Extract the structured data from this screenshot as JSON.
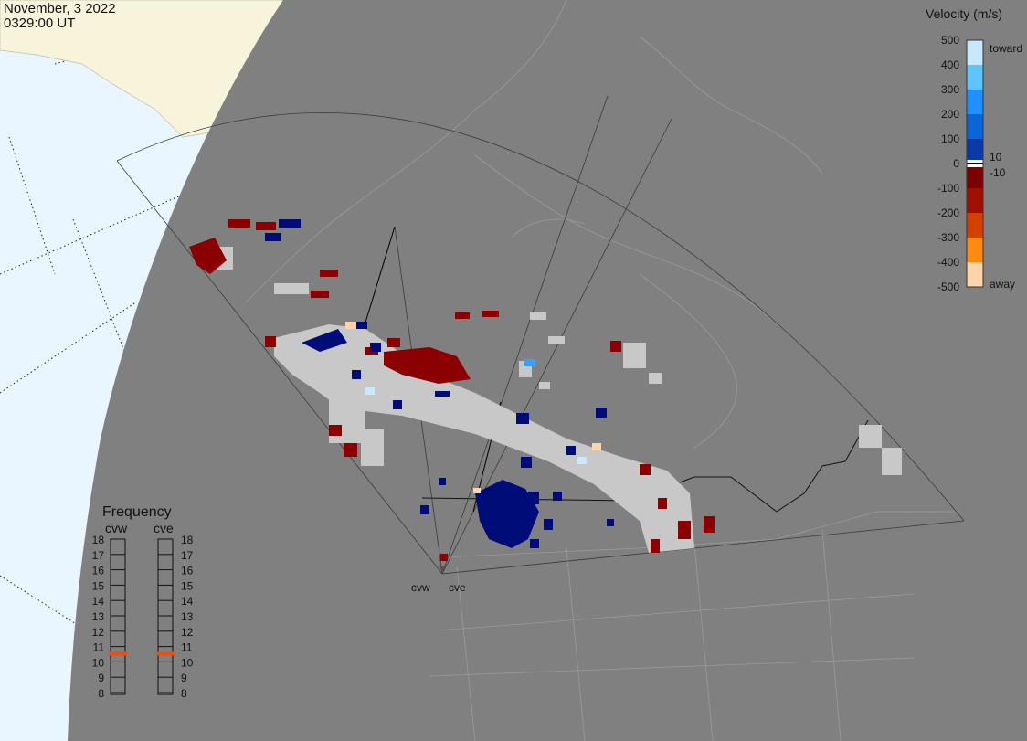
{
  "header": {
    "date": "November, 3 2022",
    "time": "0329:00 UT"
  },
  "velocity_legend": {
    "title": "Velocity (m/s)",
    "ticks": [
      "500",
      "400",
      "300",
      "200",
      "100",
      "0",
      "-100",
      "-200",
      "-300",
      "-400",
      "-500"
    ],
    "toward_label": "toward",
    "away_label": "away",
    "plus_ten": "10",
    "minus_ten": "-10",
    "colors": [
      "#c8e8ff",
      "#5ec4ff",
      "#1e90ff",
      "#0a66d6",
      "#0a3aa8",
      "#000d78",
      "#7c0000",
      "#a01000",
      "#d44000",
      "#ff8a10",
      "#ffd4a8"
    ]
  },
  "frequency_legend": {
    "title": "Frequency",
    "radars": [
      "cvw",
      "cve"
    ],
    "levels": [
      "18",
      "17",
      "16",
      "15",
      "14",
      "13",
      "12",
      "11",
      "10",
      "9",
      "8"
    ],
    "selected": {
      "cvw": 11,
      "cve": 11
    },
    "marker_color": "#e8501a"
  },
  "map": {
    "radar_labels": [
      "cvw",
      "cve"
    ],
    "colors": {
      "land": "#808080",
      "ocean": "#eaf6ff",
      "ice": "#f8f4dc",
      "ground_scatter": "#c8c8c8"
    }
  }
}
